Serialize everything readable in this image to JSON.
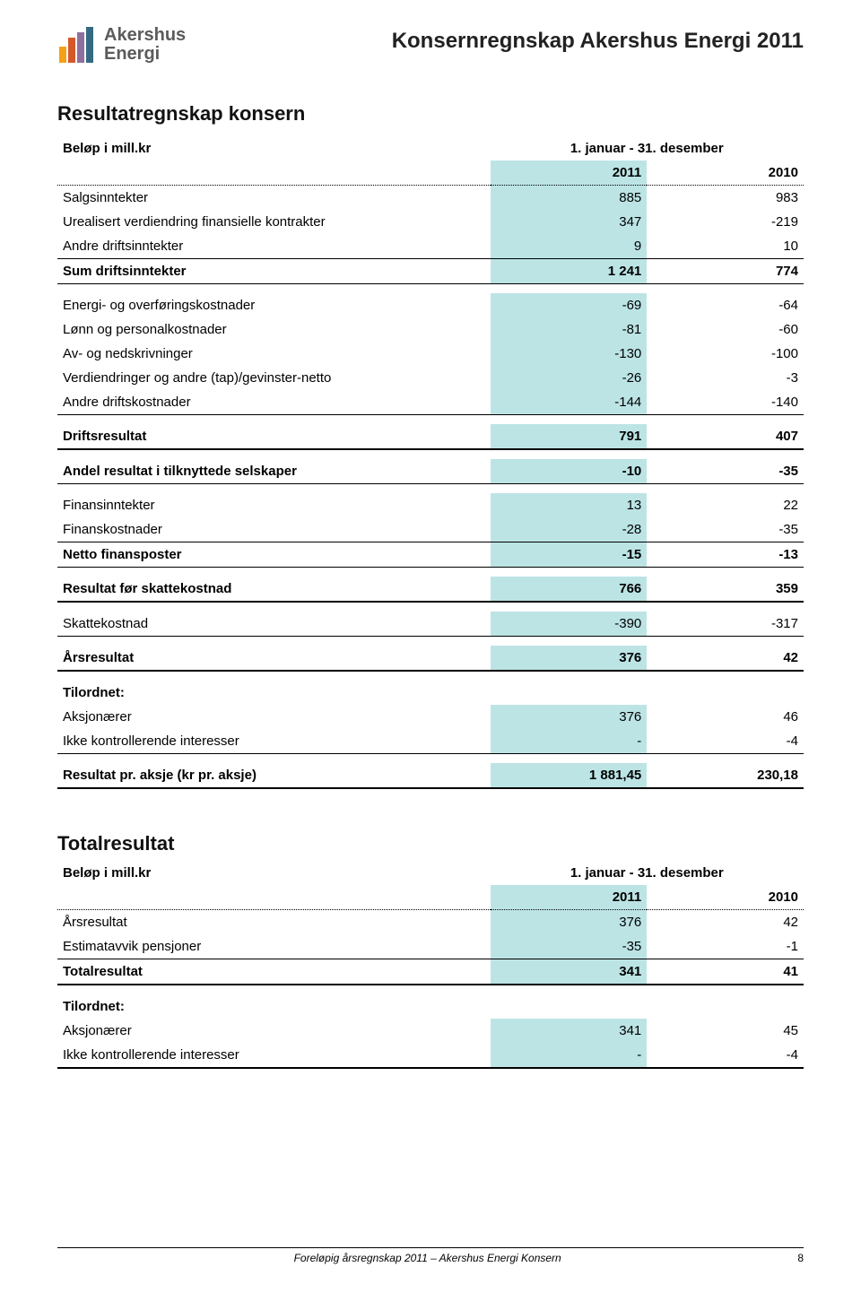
{
  "logo": {
    "line1": "Akershus",
    "line2": "Energi",
    "bar_colors": [
      "#f4a019",
      "#d4582a",
      "#8f6f9e",
      "#356a82"
    ],
    "text_color": "#5b5b5b"
  },
  "doc_title": "Konsernregnskap Akershus Energi 2011",
  "section1": {
    "title": "Resultatregnskap konsern",
    "unit_label": "Beløp i mill.kr",
    "period_label": "1. januar - 31. desember",
    "col_2011": "2011",
    "col_2010": "2010",
    "highlight_color": "#bce4e5",
    "rows": [
      {
        "label": "Salgsinntekter",
        "v11": "885",
        "v10": "983",
        "hl": true
      },
      {
        "label": "Urealisert verdiendring finansielle kontrakter",
        "v11": "347",
        "v10": "-219",
        "hl": true
      },
      {
        "label": "Andre driftsinntekter",
        "v11": "9",
        "v10": "10",
        "hl": true,
        "border": "solid"
      },
      {
        "label": "Sum driftsinntekter",
        "v11": "1 241",
        "v10": "774",
        "hl": true,
        "bold": true,
        "border": "solid"
      },
      {
        "spacer": true
      },
      {
        "label": "Energi- og overføringskostnader",
        "v11": "-69",
        "v10": "-64",
        "hl": true
      },
      {
        "label": "Lønn og personalkostnader",
        "v11": "-81",
        "v10": "-60",
        "hl": true
      },
      {
        "label": "Av- og nedskrivninger",
        "v11": "-130",
        "v10": "-100",
        "hl": true
      },
      {
        "label": "Verdiendringer og andre (tap)/gevinster-netto",
        "v11": "-26",
        "v10": "-3",
        "hl": true
      },
      {
        "label": "Andre driftskostnader",
        "v11": "-144",
        "v10": "-140",
        "hl": true,
        "border": "solid"
      },
      {
        "spacer": true
      },
      {
        "label": "Driftsresultat",
        "v11": "791",
        "v10": "407",
        "hl": true,
        "bold": true,
        "border": "thick"
      },
      {
        "spacer": true
      },
      {
        "label": "Andel resultat i tilknyttede selskaper",
        "v11": "-10",
        "v10": "-35",
        "hl": true,
        "bold": true,
        "border": "solid"
      },
      {
        "spacer": true
      },
      {
        "label": "Finansinntekter",
        "v11": "13",
        "v10": "22",
        "hl": true
      },
      {
        "label": "Finanskostnader",
        "v11": "-28",
        "v10": "-35",
        "hl": true,
        "border": "solid"
      },
      {
        "label": "Netto finansposter",
        "v11": "-15",
        "v10": "-13",
        "hl": true,
        "bold": true,
        "border": "solid"
      },
      {
        "spacer": true
      },
      {
        "label": "Resultat før skattekostnad",
        "v11": "766",
        "v10": "359",
        "hl": true,
        "bold": true,
        "border": "thick"
      },
      {
        "spacer": true
      },
      {
        "label": "Skattekostnad",
        "v11": "-390",
        "v10": "-317",
        "hl": true,
        "border": "solid"
      },
      {
        "spacer": true
      },
      {
        "label": "Årsresultat",
        "v11": "376",
        "v10": "42",
        "hl": true,
        "bold": true,
        "border": "thick"
      },
      {
        "spacer": true
      },
      {
        "label": "Tilordnet:",
        "v11": "",
        "v10": "",
        "bold": true
      },
      {
        "label": "Aksjonærer",
        "v11": "376",
        "v10": "46",
        "hl": true
      },
      {
        "label": "Ikke kontrollerende interesser",
        "v11": "-",
        "v10": "-4",
        "hl": true,
        "border": "solid"
      },
      {
        "spacer": true
      },
      {
        "label": "Resultat pr. aksje (kr pr. aksje)",
        "v11": "1 881,45",
        "v10": "230,18",
        "hl": true,
        "bold": true,
        "border": "thick"
      }
    ]
  },
  "section2": {
    "title": "Totalresultat",
    "unit_label": "Beløp i mill.kr",
    "period_label": "1. januar - 31. desember",
    "col_2011": "2011",
    "col_2010": "2010",
    "rows": [
      {
        "label": "Årsresultat",
        "v11": "376",
        "v10": "42",
        "hl": true
      },
      {
        "label": "Estimatavvik pensjoner",
        "v11": "-35",
        "v10": "-1",
        "hl": true,
        "border": "solid"
      },
      {
        "label": "Totalresultat",
        "v11": "341",
        "v10": "41",
        "hl": true,
        "bold": true,
        "border": "thick"
      },
      {
        "spacer": true
      },
      {
        "label": "Tilordnet:",
        "v11": "",
        "v10": "",
        "bold": true
      },
      {
        "label": "Aksjonærer",
        "v11": "341",
        "v10": "45",
        "hl": true
      },
      {
        "label": "Ikke kontrollerende interesser",
        "v11": "-",
        "v10": "-4",
        "hl": true,
        "border": "thick"
      }
    ]
  },
  "footer": {
    "text": "Foreløpig årsregnskap 2011 – Akershus Energi Konsern",
    "page": "8"
  }
}
